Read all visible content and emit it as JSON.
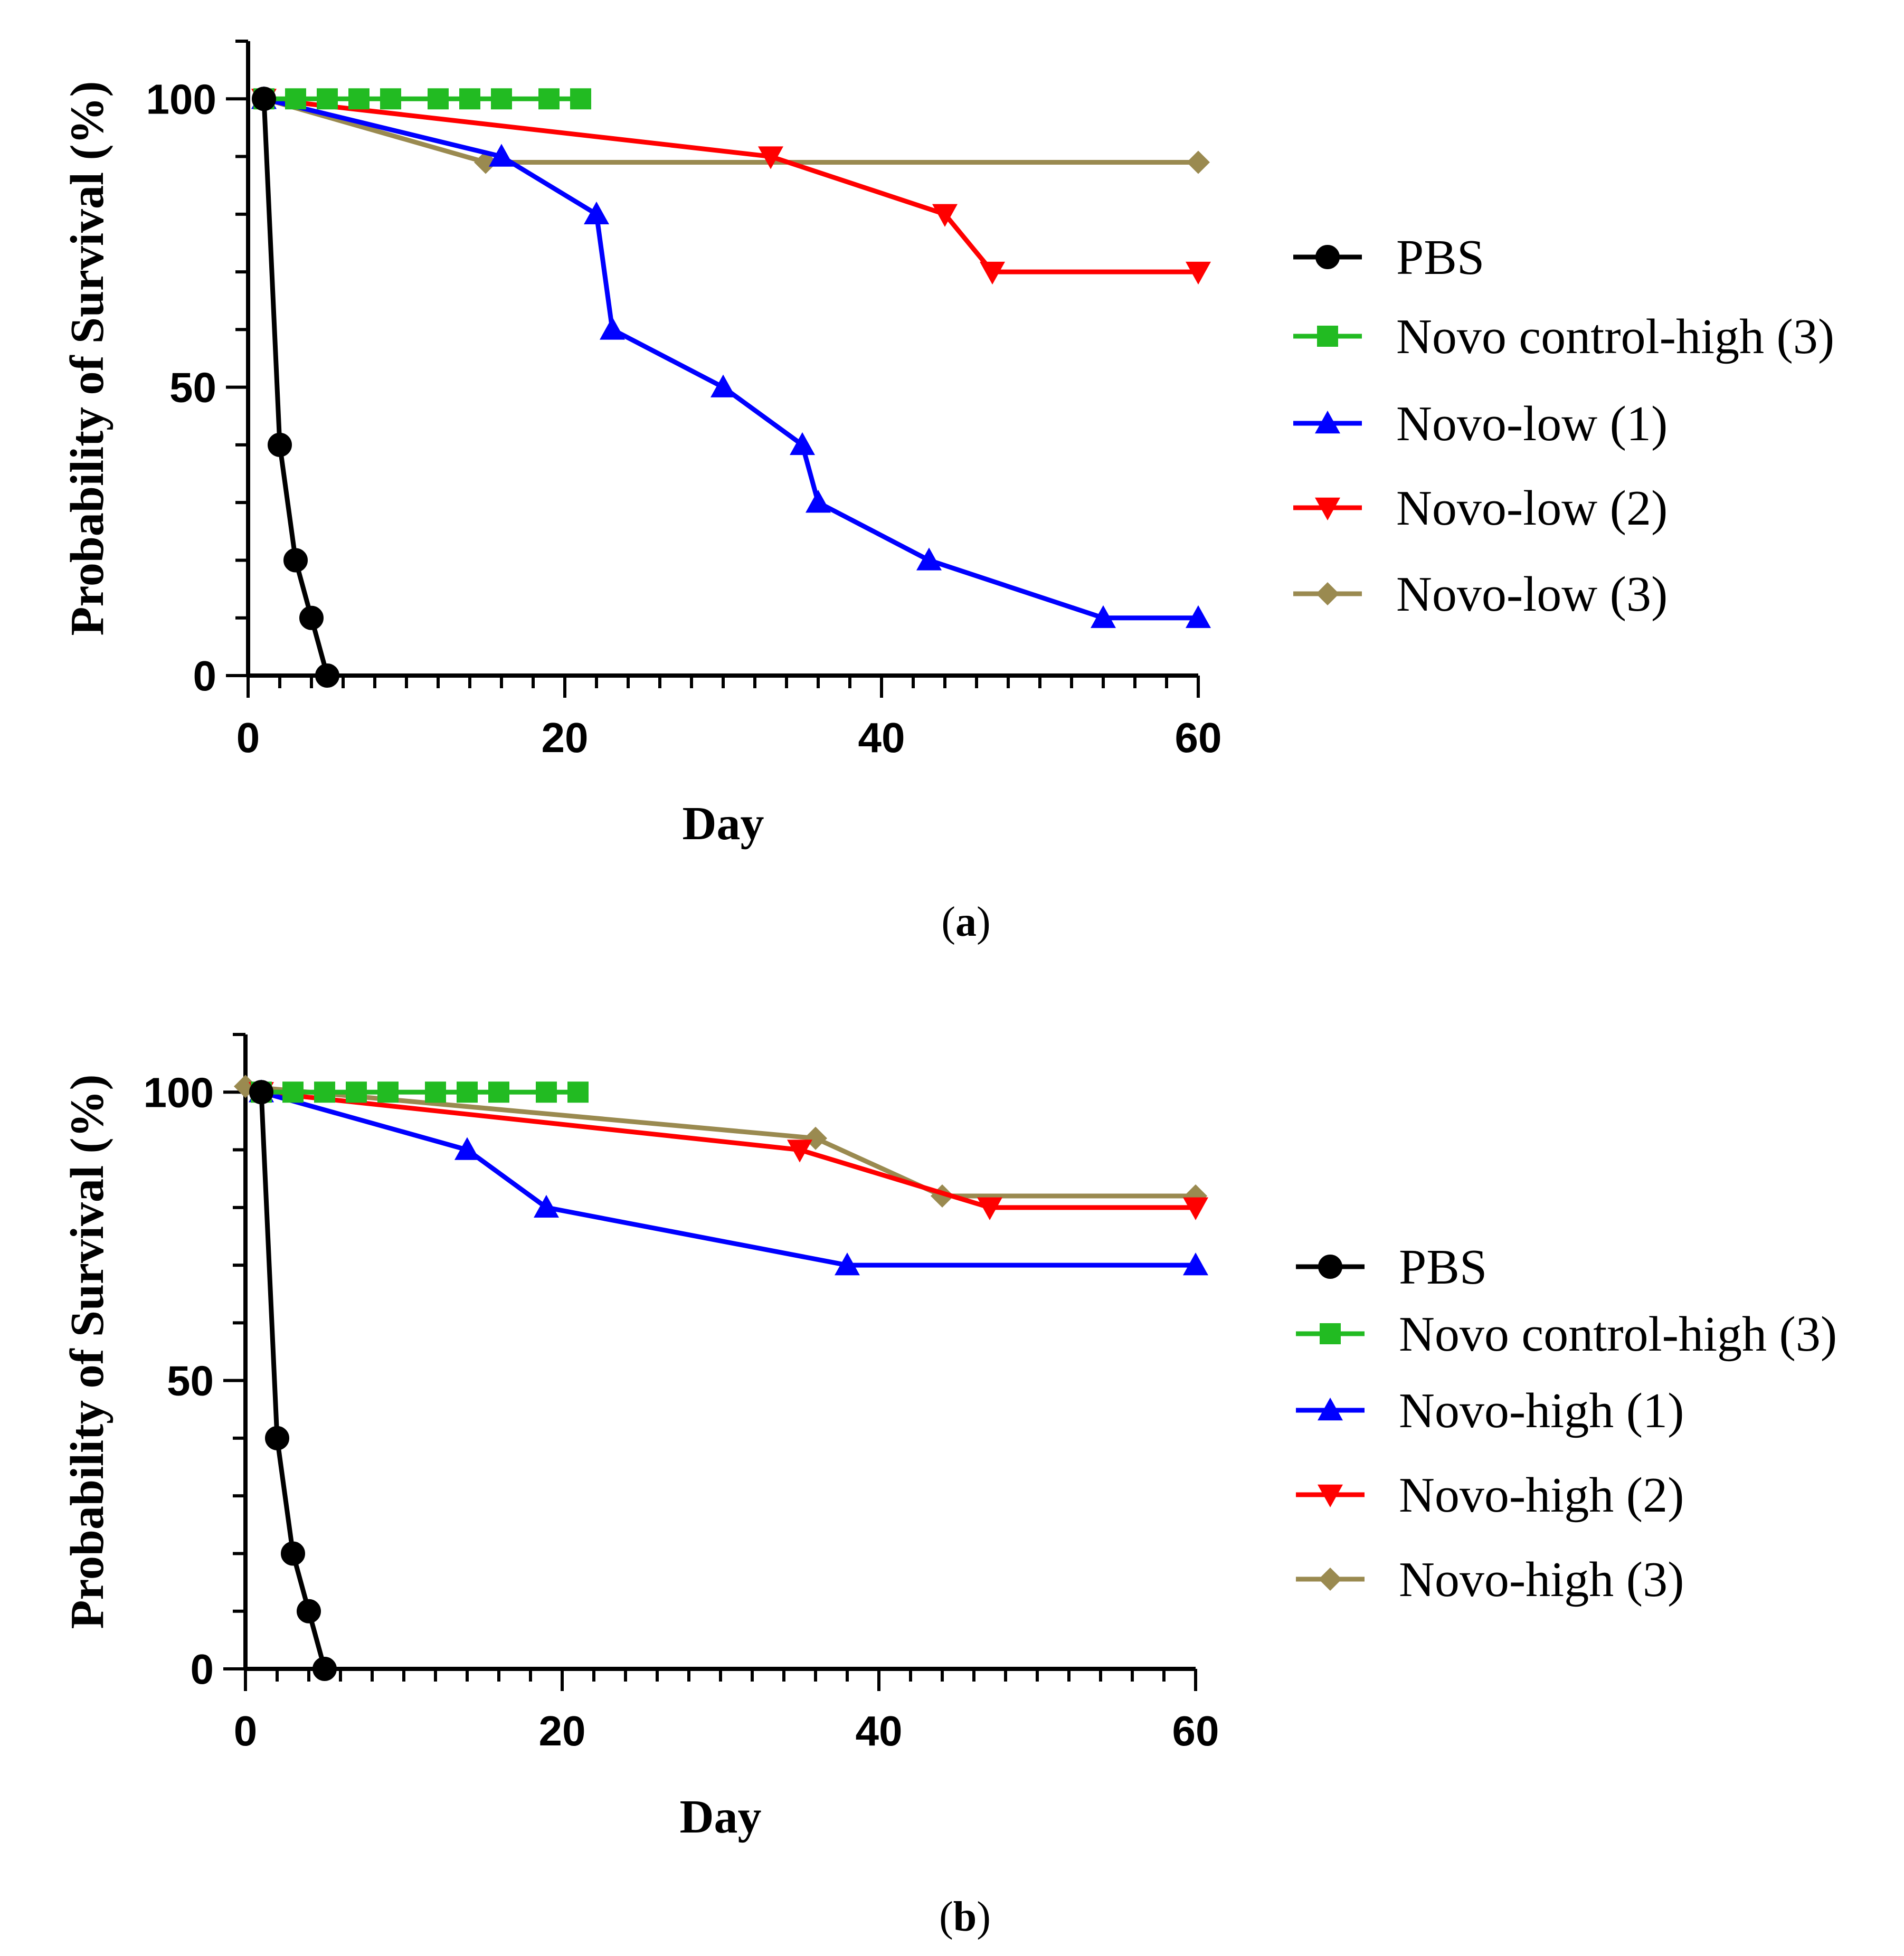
{
  "chart_data": [
    {
      "type": "line",
      "panel": "a",
      "caption_letter": "a",
      "xlabel": "Day",
      "ylabel": "Probability of Survival (%)",
      "xlim": [
        0,
        60
      ],
      "ylim": [
        0,
        110
      ],
      "x_ticks": [
        0,
        20,
        40,
        60
      ],
      "y_ticks": [
        0,
        50,
        100
      ],
      "legend_position": "right",
      "series": [
        {
          "name": "PBS",
          "color": "#000000",
          "marker": "circle",
          "x": [
            1,
            2,
            3,
            4,
            5
          ],
          "y": [
            100,
            40,
            20,
            10,
            0
          ]
        },
        {
          "name": "Novo control-high (3)",
          "color": "#22bb22",
          "marker": "square",
          "x": [
            1,
            3,
            5,
            7,
            9,
            12,
            14,
            16,
            19,
            21
          ],
          "y": [
            100,
            100,
            100,
            100,
            100,
            100,
            100,
            100,
            100,
            100
          ]
        },
        {
          "name": "Novo-low (1)",
          "color": "#0000ff",
          "marker": "triangle-up",
          "x": [
            1,
            16,
            22,
            23,
            30,
            35,
            36,
            43,
            54,
            60
          ],
          "y": [
            100,
            90,
            80,
            60,
            50,
            40,
            30,
            20,
            10,
            10
          ]
        },
        {
          "name": "Novo-low (2)",
          "color": "#ff0000",
          "marker": "triangle-down",
          "x": [
            1,
            33,
            44,
            47,
            60
          ],
          "y": [
            100,
            90,
            80,
            70,
            70
          ]
        },
        {
          "name": "Novo-low (3)",
          "color": "#9a8a50",
          "marker": "diamond",
          "x": [
            1,
            15,
            60
          ],
          "y": [
            100,
            89,
            89
          ]
        }
      ]
    },
    {
      "type": "line",
      "panel": "b",
      "caption_letter": "b",
      "xlabel": "Day",
      "ylabel": "Probability of Survival (%)",
      "xlim": [
        0,
        60
      ],
      "ylim": [
        0,
        110
      ],
      "x_ticks": [
        0,
        20,
        40,
        60
      ],
      "y_ticks": [
        0,
        50,
        100
      ],
      "legend_position": "right",
      "series": [
        {
          "name": "PBS",
          "color": "#000000",
          "marker": "circle",
          "x": [
            1,
            2,
            3,
            4,
            5
          ],
          "y": [
            100,
            40,
            20,
            10,
            0
          ]
        },
        {
          "name": "Novo control-high (3)",
          "color": "#22bb22",
          "marker": "square",
          "x": [
            1,
            3,
            5,
            7,
            9,
            12,
            14,
            16,
            19,
            21
          ],
          "y": [
            100,
            100,
            100,
            100,
            100,
            100,
            100,
            100,
            100,
            100
          ]
        },
        {
          "name": "Novo-high (1)",
          "color": "#0000ff",
          "marker": "triangle-up",
          "x": [
            1,
            14,
            19,
            38,
            60
          ],
          "y": [
            100,
            90,
            80,
            70,
            70
          ]
        },
        {
          "name": "Novo-high (2)",
          "color": "#ff0000",
          "marker": "triangle-down",
          "x": [
            1,
            35,
            47,
            60
          ],
          "y": [
            100,
            90,
            80,
            80
          ]
        },
        {
          "name": "Novo-high (3)",
          "color": "#9a8a50",
          "marker": "diamond",
          "x": [
            0,
            36,
            44,
            60
          ],
          "y": [
            101,
            92,
            82,
            82
          ]
        }
      ]
    }
  ]
}
